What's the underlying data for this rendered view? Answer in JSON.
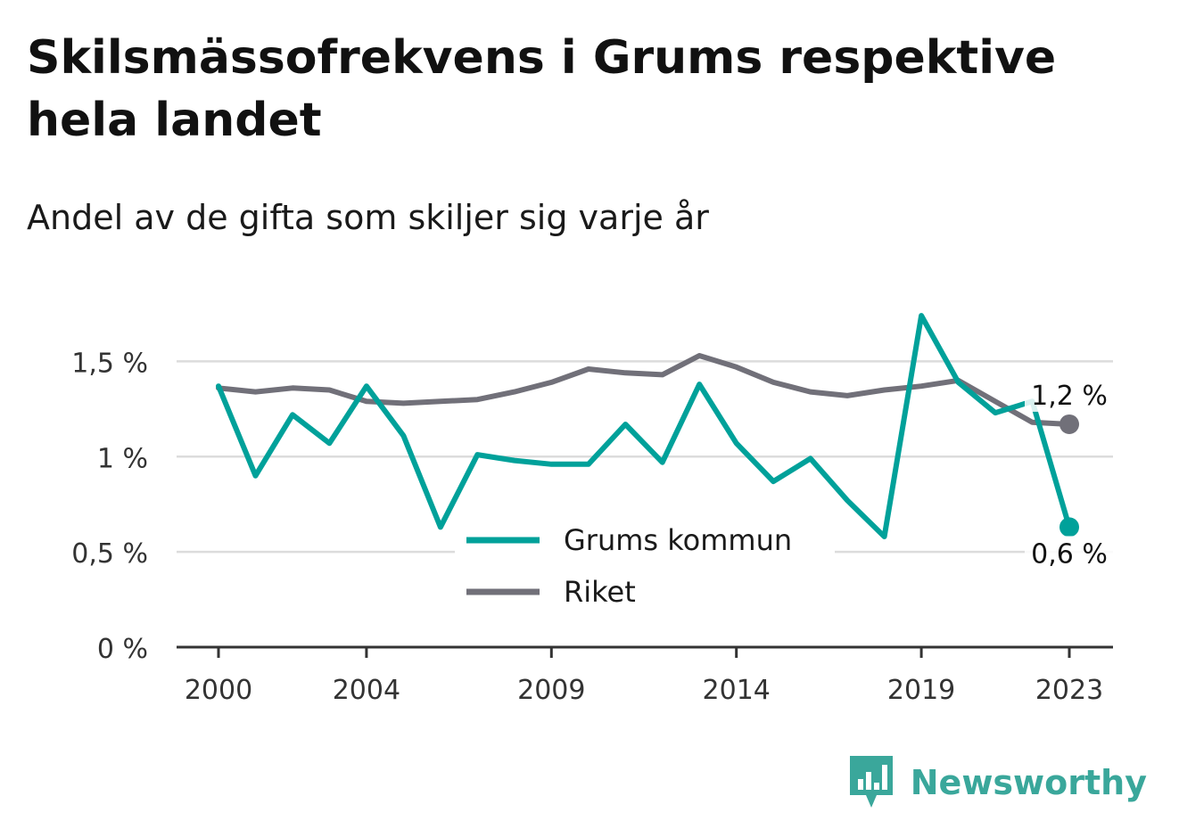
{
  "title": "Skilsmässofrekvens i Grums respektive hela landet",
  "subtitle": "Andel av de gifta som skiljer sig varje år",
  "brand": {
    "name": "Newsworthy",
    "icon": "newsworthy-bar-chart-icon",
    "color": "#3aa79b"
  },
  "chart_data": {
    "type": "line",
    "x": [
      2000,
      2001,
      2002,
      2003,
      2004,
      2005,
      2006,
      2007,
      2008,
      2009,
      2010,
      2011,
      2012,
      2013,
      2014,
      2015,
      2016,
      2017,
      2018,
      2019,
      2020,
      2021,
      2022,
      2023
    ],
    "x_tick_labels": [
      "2000",
      "2004",
      "2009",
      "2014",
      "2019",
      "2023"
    ],
    "x_ticks": [
      2000,
      2004,
      2009,
      2014,
      2019,
      2023
    ],
    "y_ticks": [
      0,
      0.5,
      1,
      1.5
    ],
    "y_tick_labels": [
      "0 %",
      "0,5 %",
      "1 %",
      "1,5 %"
    ],
    "ylim": [
      0,
      1.75
    ],
    "grid": true,
    "legend_position": "center-bottom",
    "series": [
      {
        "name": "Grums kommun",
        "color": "#00a19a",
        "values": [
          1.37,
          0.9,
          1.22,
          1.07,
          1.37,
          1.11,
          0.63,
          1.01,
          0.98,
          0.96,
          0.96,
          1.17,
          0.97,
          1.38,
          1.07,
          0.87,
          0.99,
          0.77,
          0.58,
          1.74,
          1.39,
          1.23,
          1.29,
          0.63
        ],
        "end_label": "0,6 %"
      },
      {
        "name": "Riket",
        "color": "#717079",
        "values": [
          1.36,
          1.34,
          1.36,
          1.35,
          1.29,
          1.28,
          1.29,
          1.3,
          1.34,
          1.39,
          1.46,
          1.44,
          1.43,
          1.53,
          1.47,
          1.39,
          1.34,
          1.32,
          1.35,
          1.37,
          1.4,
          1.29,
          1.18,
          1.17
        ],
        "end_label": "1,2 %"
      }
    ]
  }
}
